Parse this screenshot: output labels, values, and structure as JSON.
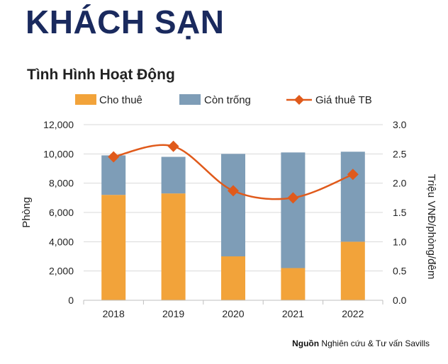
{
  "page_title": "KHÁCH SẠN",
  "source": {
    "label": "Nguồn",
    "text": " Nghiên cứu & Tư vấn Savills"
  },
  "colors": {
    "rented": "#F2A33A",
    "vacant": "#7E9DB7",
    "price": "#E05A1B",
    "title": "#1a2a5e"
  },
  "chart_data": {
    "type": "bar",
    "title": "Tình Hình Hoạt Động",
    "categories": [
      "2018",
      "2019",
      "2020",
      "2021",
      "2022"
    ],
    "series": [
      {
        "name": "Cho thuê",
        "kind": "bar-stacked",
        "axis": "left",
        "values": [
          7200,
          7300,
          3000,
          2200,
          4000
        ]
      },
      {
        "name": "Còn trống",
        "kind": "bar-stacked",
        "axis": "left",
        "values": [
          2700,
          2500,
          7000,
          7900,
          6150
        ]
      },
      {
        "name": "Giá thuê TB",
        "kind": "line",
        "axis": "right",
        "values": [
          2.45,
          2.63,
          1.87,
          1.75,
          2.15
        ]
      }
    ],
    "ylabel": "Phòng",
    "y2label": "Triệu VNĐ/phòng/đêm",
    "ylim": [
      0,
      12000
    ],
    "y2lim": [
      0,
      3.0
    ],
    "yticks": [
      "0",
      "2,000",
      "4,000",
      "6,000",
      "8,000",
      "10,000",
      "12,000"
    ],
    "y2ticks": [
      "0.0",
      "0.5",
      "1.0",
      "1.5",
      "2.0",
      "2.5",
      "3.0"
    ],
    "legend_position": "top",
    "grid": true
  }
}
